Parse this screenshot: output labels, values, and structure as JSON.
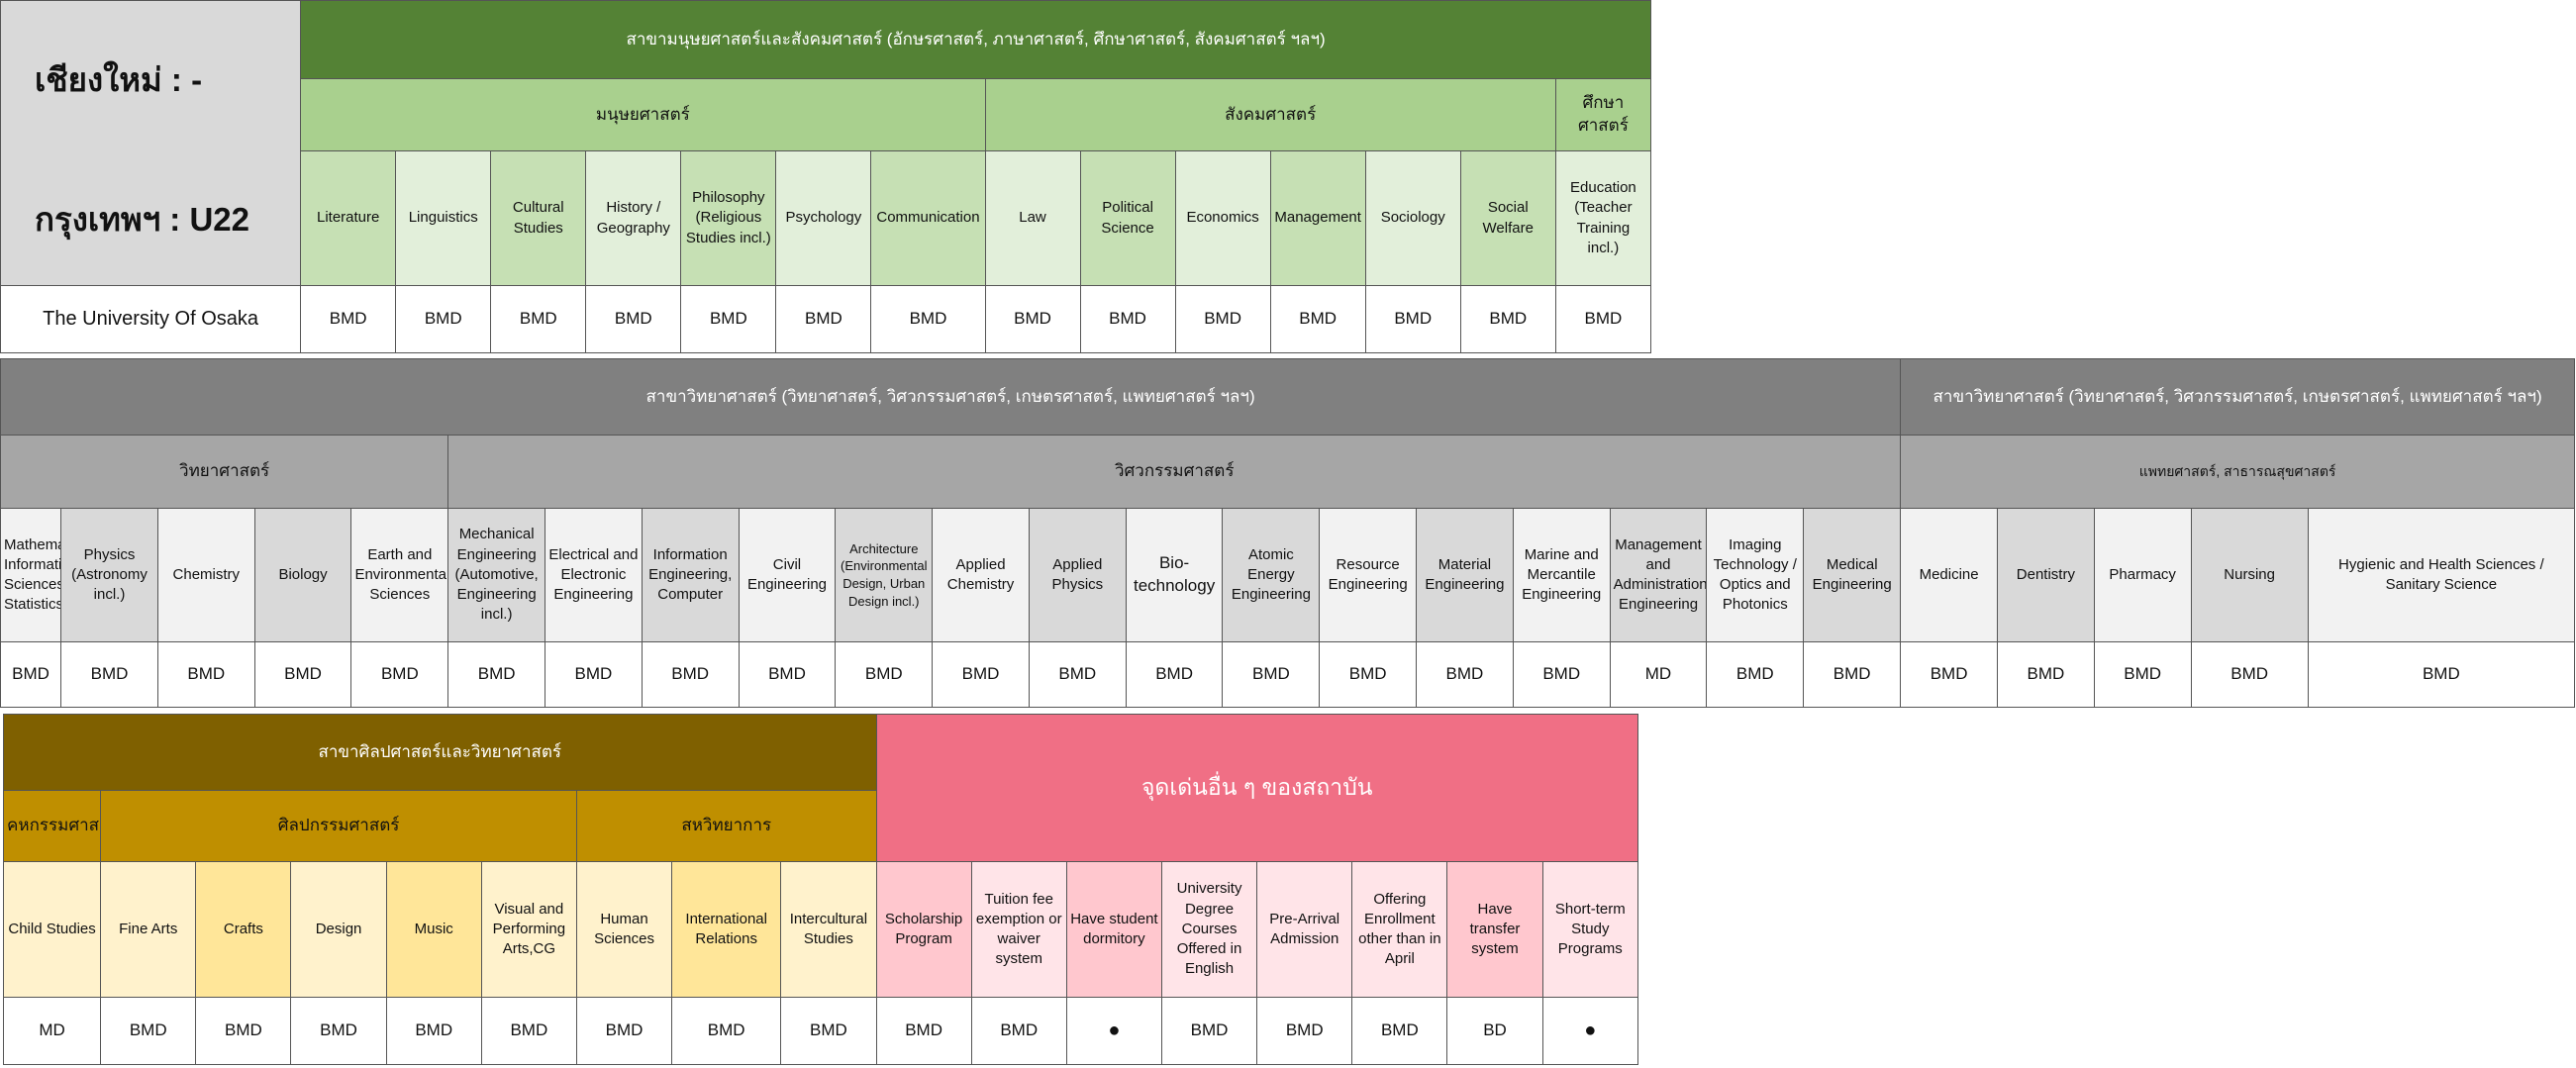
{
  "section1": {
    "city_chiangmai": "เชียงใหม่ : -",
    "city_bangkok": "กรุงเทพฯ : U22",
    "top_header": "สาขามนุษยศาสตร์และสังคมศาสตร์ (อักษรศาสตร์, ภาษาศาสตร์, ศึกษาศาสตร์, สังคมศาสตร์ ฯลฯ)",
    "groups": [
      "มนุษยศาสตร์",
      "สังคมศาสตร์",
      "ศึกษาศาสตร์"
    ],
    "subjects": [
      "Literature",
      "Linguistics",
      "Cultural Studies",
      "History / Geography",
      "Philosophy (Religious Studies incl.)",
      "Psychology",
      "Communication",
      "Law",
      "Political Science",
      "Economics",
      "Management",
      "Sociology",
      "Social Welfare",
      "Education (Teacher Training incl.)"
    ],
    "university": "The University Of Osaka",
    "values": [
      "BMD",
      "BMD",
      "BMD",
      "BMD",
      "BMD",
      "BMD",
      "BMD",
      "BMD",
      "BMD",
      "BMD",
      "BMD",
      "BMD",
      "BMD",
      "BMD"
    ]
  },
  "section2": {
    "top_header_left": "สาขาวิทยาศาสตร์ (วิทยาศาสตร์, วิศวกรรมศาสตร์, เกษตรศาสตร์, แพทยศาสตร์ ฯลฯ)",
    "top_header_right": "สาขาวิทยาศาสตร์ (วิทยาศาสตร์, วิศวกรรมศาสตร์, เกษตรศาสตร์, แพทยศาสตร์ ฯลฯ)",
    "groups": [
      "วิทยาศาสตร์",
      "วิศวกรรมศาสตร์",
      "แพทยศาสตร์, สาธารณสุขศาสตร์"
    ],
    "subjects": [
      "Mathematics, Information Sciences, Statistics",
      "Physics (Astronomy incl.)",
      "Chemistry",
      "Biology",
      "Earth and Environmental Sciences",
      "Mechanical Engineering (Automotive, Engineering incl.)",
      "Electrical and Electronic Engineering",
      "Information Engineering, Computer",
      "Civil Engineering",
      "Architecture (Environmental Design, Urban Design incl.)",
      "Applied Chemistry",
      "Applied Physics",
      "Bio-technology",
      "Atomic Energy Engineering",
      "Resource Engineering",
      "Material Engineering",
      "Marine and Mercantile Engineering",
      "Management and Administration Engineering",
      "Imaging Technology / Optics and Photonics",
      "Medical Engineering",
      "Medicine",
      "Dentistry",
      "Pharmacy",
      "Nursing",
      "Hygienic and Health Sciences / Sanitary Science"
    ],
    "values": [
      "BMD",
      "BMD",
      "BMD",
      "BMD",
      "BMD",
      "BMD",
      "BMD",
      "BMD",
      "BMD",
      "BMD",
      "BMD",
      "BMD",
      "BMD",
      "BMD",
      "BMD",
      "BMD",
      "BMD",
      "MD",
      "BMD",
      "BMD",
      "BMD",
      "BMD",
      "BMD",
      "BMD",
      "BMD"
    ]
  },
  "section3": {
    "top_header": "สาขาศิลปศาสตร์และวิทยาศาสตร์",
    "features_header": "จุดเด่นอื่น ๆ ของสถาบัน",
    "groups": [
      "คหกรรมศาสตร์",
      "ศิลปกรรมศาสตร์",
      "สหวิทยาการ"
    ],
    "subjects": [
      "Child Studies",
      "Fine Arts",
      "Crafts",
      "Design",
      "Music",
      "Visual and Performing Arts,CG",
      "Human Sciences",
      "International Relations",
      "Intercultural Studies"
    ],
    "features": [
      "Scholarship Program",
      "Tuition fee exemption or waiver system",
      "Have student dormitory",
      "University Degree Courses Offered in English",
      "Pre-Arrival Admission",
      "Offering Enrollment other than in April",
      "Have transfer system",
      "Short-term Study Programs"
    ],
    "values": [
      "MD",
      "BMD",
      "BMD",
      "BMD",
      "BMD",
      "BMD",
      "BMD",
      "BMD",
      "BMD"
    ],
    "feature_values": [
      "BMD",
      "BMD",
      "●",
      "BMD",
      "BMD",
      "BMD",
      "BD",
      "●"
    ]
  }
}
